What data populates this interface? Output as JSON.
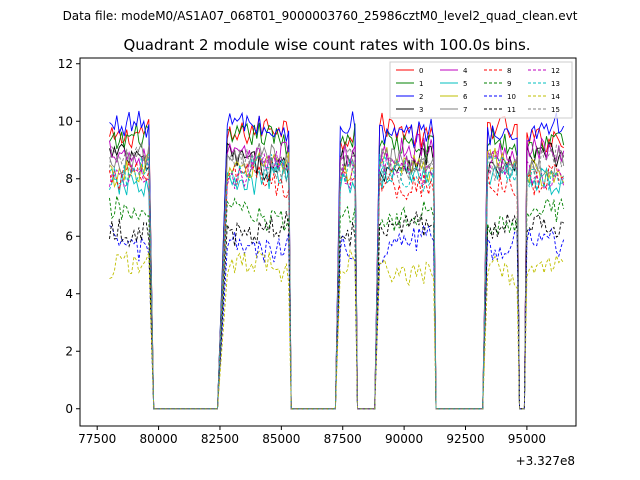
{
  "chart_data": {
    "type": "line",
    "suptitle": "Data file: modeM0/AS1A07_068T01_9000003760_25986cztM0_level2_quad_clean.evt",
    "title": "Quadrant 2 module wise count rates with 100.0s bins.",
    "xlabel": "",
    "ylabel": "",
    "x_offset_label": "+3.327e8",
    "xlim": [
      76800,
      97000
    ],
    "ylim": [
      -0.6,
      12.2
    ],
    "x_ticks": [
      77500,
      80000,
      82500,
      85000,
      87500,
      90000,
      92500,
      95000
    ],
    "x_tick_labels": [
      "77500",
      "80000",
      "82500",
      "85000",
      "87500",
      "90000",
      "92500",
      "95000"
    ],
    "y_ticks": [
      0,
      2,
      4,
      6,
      8,
      10,
      12
    ],
    "y_tick_labels": [
      "0",
      "2",
      "4",
      "6",
      "8",
      "10",
      "12"
    ],
    "active_intervals": [
      [
        78000,
        79600
      ],
      [
        82800,
        85300
      ],
      [
        87400,
        88000
      ],
      [
        89000,
        91200
      ],
      [
        93400,
        94600
      ],
      [
        95000,
        96500
      ]
    ],
    "gaps": [
      [
        79800,
        82400
      ],
      [
        85400,
        87200
      ],
      [
        88100,
        88800
      ],
      [
        91300,
        93200
      ],
      [
        94700,
        94900
      ]
    ],
    "series": [
      {
        "name": "0",
        "color": "#ff0000",
        "dash": "solid",
        "level": 9.6
      },
      {
        "name": "1",
        "color": "#008000",
        "dash": "solid",
        "level": 9.3
      },
      {
        "name": "2",
        "color": "#0000ff",
        "dash": "solid",
        "level": 9.7
      },
      {
        "name": "3",
        "color": "#000000",
        "dash": "solid",
        "level": 8.6
      },
      {
        "name": "4",
        "color": "#bf00bf",
        "dash": "solid",
        "level": 8.9
      },
      {
        "name": "5",
        "color": "#00bfbf",
        "dash": "solid",
        "level": 8.0
      },
      {
        "name": "6",
        "color": "#bfbf00",
        "dash": "solid",
        "level": 8.4
      },
      {
        "name": "7",
        "color": "#808080",
        "dash": "solid",
        "level": 8.6
      },
      {
        "name": "8",
        "color": "#ff0000",
        "dash": "dashed",
        "level": 7.9
      },
      {
        "name": "9",
        "color": "#008000",
        "dash": "dashed",
        "level": 6.7
      },
      {
        "name": "10",
        "color": "#0000ff",
        "dash": "dashed",
        "level": 5.7
      },
      {
        "name": "11",
        "color": "#000000",
        "dash": "dashed",
        "level": 6.3
      },
      {
        "name": "12",
        "color": "#bf00bf",
        "dash": "dashed",
        "level": 8.3
      },
      {
        "name": "13",
        "color": "#00bfbf",
        "dash": "dashed",
        "level": 8.2
      },
      {
        "name": "14",
        "color": "#bfbf00",
        "dash": "dashed",
        "level": 4.9
      },
      {
        "name": "15",
        "color": "#808080",
        "dash": "dashed",
        "level": 8.5
      }
    ],
    "legend_position": "top-right"
  }
}
